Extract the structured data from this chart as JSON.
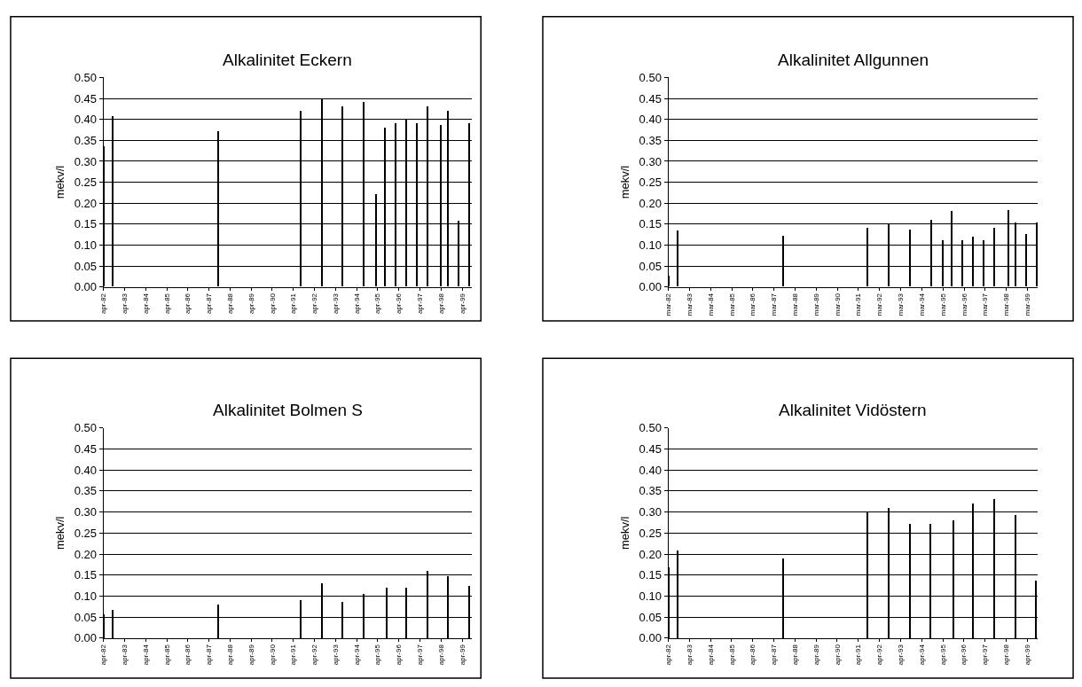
{
  "chart_data": [
    {
      "type": "bar",
      "title": "Alkalinitet Eckern",
      "ylabel": "mekv/l",
      "color": "#000000",
      "grid": "y",
      "x": [
        "1982-04",
        "1982-09",
        "1987-09",
        "1991-08",
        "1992-08",
        "1993-08",
        "1994-08",
        "1995-03",
        "1995-08",
        "1996-02",
        "1996-08",
        "1997-02",
        "1997-08",
        "1998-04",
        "1998-08",
        "1999-02",
        "1999-08"
      ],
      "values": [
        0.336,
        0.407,
        0.37,
        0.42,
        0.45,
        0.43,
        0.44,
        0.22,
        0.38,
        0.39,
        0.4,
        0.39,
        0.43,
        0.385,
        0.42,
        0.157,
        0.39
      ],
      "xlim": [
        "1982-04",
        "1999-09-20"
      ],
      "ylim": [
        0,
        0.5
      ],
      "xticks": [
        {
          "value": "1982-04",
          "label": "apr-82"
        },
        {
          "value": "1983-04",
          "label": "apr-83"
        },
        {
          "value": "1984-04",
          "label": "apr-84"
        },
        {
          "value": "1985-04",
          "label": "apr-85"
        },
        {
          "value": "1986-04",
          "label": "apr-86"
        },
        {
          "value": "1987-04",
          "label": "apr-87"
        },
        {
          "value": "1988-04",
          "label": "apr-88"
        },
        {
          "value": "1989-04",
          "label": "apr-89"
        },
        {
          "value": "1990-04",
          "label": "apr-90"
        },
        {
          "value": "1991-04",
          "label": "apr-91"
        },
        {
          "value": "1992-04",
          "label": "apr-92"
        },
        {
          "value": "1993-04",
          "label": "apr-93"
        },
        {
          "value": "1994-04",
          "label": "apr-94"
        },
        {
          "value": "1995-04",
          "label": "apr-95"
        },
        {
          "value": "1996-04",
          "label": "apr-96"
        },
        {
          "value": "1997-04",
          "label": "apr-97"
        },
        {
          "value": "1998-04",
          "label": "apr-98"
        },
        {
          "value": "1999-04",
          "label": "apr-99"
        }
      ],
      "yticks": [
        {
          "value": 0,
          "label": "0.00"
        },
        {
          "value": 0.05,
          "label": "0.05"
        },
        {
          "value": 0.1,
          "label": "0.10"
        },
        {
          "value": 0.15,
          "label": "0.15"
        },
        {
          "value": 0.2,
          "label": "0.20"
        },
        {
          "value": 0.25,
          "label": "0.25"
        },
        {
          "value": 0.3,
          "label": "0.30"
        },
        {
          "value": 0.35,
          "label": "0.35"
        },
        {
          "value": 0.4,
          "label": "0.40"
        },
        {
          "value": 0.45,
          "label": "0.45"
        },
        {
          "value": 0.5,
          "label": "0.50"
        }
      ]
    },
    {
      "type": "bar",
      "title": "Alkalinitet Allgunnen",
      "ylabel": "mekv/l",
      "color": "#000000",
      "grid": "y",
      "x": [
        "1982-03",
        "1982-08",
        "1987-08",
        "1991-08",
        "1992-08",
        "1993-08",
        "1994-08",
        "1995-03",
        "1995-08",
        "1996-02",
        "1996-08",
        "1997-02",
        "1997-08",
        "1998-04",
        "1998-08",
        "1999-02",
        "1999-08"
      ],
      "values": [
        0.026,
        0.133,
        0.121,
        0.14,
        0.15,
        0.136,
        0.16,
        0.11,
        0.18,
        0.11,
        0.12,
        0.11,
        0.14,
        0.182,
        0.152,
        0.126,
        0.152
      ],
      "xlim": [
        "1982-03",
        "1999-08-28"
      ],
      "ylim": [
        0,
        0.5
      ],
      "xticks": [
        {
          "value": "1982-03",
          "label": "mar-82"
        },
        {
          "value": "1983-03",
          "label": "mar-83"
        },
        {
          "value": "1984-03",
          "label": "mar-84"
        },
        {
          "value": "1985-03",
          "label": "mar-85"
        },
        {
          "value": "1986-03",
          "label": "mar-86"
        },
        {
          "value": "1987-03",
          "label": "mar-87"
        },
        {
          "value": "1988-03",
          "label": "mar-88"
        },
        {
          "value": "1989-03",
          "label": "mar-89"
        },
        {
          "value": "1990-03",
          "label": "mar-90"
        },
        {
          "value": "1991-03",
          "label": "mar-91"
        },
        {
          "value": "1992-03",
          "label": "mar-92"
        },
        {
          "value": "1993-03",
          "label": "mar-93"
        },
        {
          "value": "1994-03",
          "label": "mar-94"
        },
        {
          "value": "1995-03",
          "label": "mar-95"
        },
        {
          "value": "1996-03",
          "label": "mar-96"
        },
        {
          "value": "1997-03",
          "label": "mar-97"
        },
        {
          "value": "1998-03",
          "label": "mar-98"
        },
        {
          "value": "1999-03",
          "label": "mar-99"
        }
      ],
      "yticks": [
        {
          "value": 0,
          "label": "0.00"
        },
        {
          "value": 0.05,
          "label": "0.05"
        },
        {
          "value": 0.1,
          "label": "0.10"
        },
        {
          "value": 0.15,
          "label": "0.15"
        },
        {
          "value": 0.2,
          "label": "0.20"
        },
        {
          "value": 0.25,
          "label": "0.25"
        },
        {
          "value": 0.3,
          "label": "0.30"
        },
        {
          "value": 0.35,
          "label": "0.35"
        },
        {
          "value": 0.4,
          "label": "0.40"
        },
        {
          "value": 0.45,
          "label": "0.45"
        },
        {
          "value": 0.5,
          "label": "0.50"
        }
      ]
    },
    {
      "type": "bar",
      "title": "Alkalinitet Bolmen S",
      "ylabel": "mekv/l",
      "color": "#000000",
      "grid": "y",
      "x": [
        "1982-04",
        "1982-09",
        "1987-09",
        "1991-08",
        "1992-08",
        "1993-08",
        "1994-08",
        "1995-09",
        "1996-08",
        "1997-08",
        "1998-08",
        "1999-08"
      ],
      "values": [
        0.057,
        0.069,
        0.081,
        0.091,
        0.131,
        0.087,
        0.106,
        0.121,
        0.121,
        0.161,
        0.149,
        0.126
      ],
      "xlim": [
        "1982-04",
        "1999-09-20"
      ],
      "ylim": [
        0,
        0.5
      ],
      "xticks": [
        {
          "value": "1982-04",
          "label": "apr-82"
        },
        {
          "value": "1983-04",
          "label": "apr-83"
        },
        {
          "value": "1984-04",
          "label": "apr-84"
        },
        {
          "value": "1985-04",
          "label": "apr-85"
        },
        {
          "value": "1986-04",
          "label": "apr-86"
        },
        {
          "value": "1987-04",
          "label": "apr-87"
        },
        {
          "value": "1988-04",
          "label": "apr-88"
        },
        {
          "value": "1989-04",
          "label": "apr-89"
        },
        {
          "value": "1990-04",
          "label": "apr-90"
        },
        {
          "value": "1991-04",
          "label": "apr-91"
        },
        {
          "value": "1992-04",
          "label": "apr-92"
        },
        {
          "value": "1993-04",
          "label": "apr-93"
        },
        {
          "value": "1994-04",
          "label": "apr-94"
        },
        {
          "value": "1995-04",
          "label": "apr-95"
        },
        {
          "value": "1996-04",
          "label": "apr-96"
        },
        {
          "value": "1997-04",
          "label": "apr-97"
        },
        {
          "value": "1998-04",
          "label": "apr-98"
        },
        {
          "value": "1999-04",
          "label": "apr-99"
        }
      ],
      "yticks": [
        {
          "value": 0,
          "label": "0.00"
        },
        {
          "value": 0.05,
          "label": "0.05"
        },
        {
          "value": 0.1,
          "label": "0.10"
        },
        {
          "value": 0.15,
          "label": "0.15"
        },
        {
          "value": 0.2,
          "label": "0.20"
        },
        {
          "value": 0.25,
          "label": "0.25"
        },
        {
          "value": 0.3,
          "label": "0.30"
        },
        {
          "value": 0.35,
          "label": "0.35"
        },
        {
          "value": 0.4,
          "label": "0.40"
        },
        {
          "value": 0.45,
          "label": "0.45"
        },
        {
          "value": 0.5,
          "label": "0.50"
        }
      ]
    },
    {
      "type": "bar",
      "title": "Alkalinitet Vidöstern",
      "ylabel": "mekv/l",
      "color": "#000000",
      "grid": "y",
      "x": [
        "1982-04",
        "1982-09",
        "1987-09",
        "1991-09",
        "1992-09",
        "1993-09",
        "1994-09",
        "1995-10",
        "1996-09",
        "1997-09",
        "1998-09",
        "1999-09"
      ],
      "values": [
        0.17,
        0.21,
        0.19,
        0.3,
        0.31,
        0.272,
        0.272,
        0.28,
        0.32,
        0.331,
        0.294,
        0.138
      ],
      "xlim": [
        "1982-04",
        "1999-10"
      ],
      "ylim": [
        0,
        0.5
      ],
      "xticks": [
        {
          "value": "1982-04",
          "label": "apr-82"
        },
        {
          "value": "1983-04",
          "label": "apr-83"
        },
        {
          "value": "1984-04",
          "label": "apr-84"
        },
        {
          "value": "1985-04",
          "label": "apr-85"
        },
        {
          "value": "1986-04",
          "label": "apr-86"
        },
        {
          "value": "1987-04",
          "label": "apr-87"
        },
        {
          "value": "1988-04",
          "label": "apr-88"
        },
        {
          "value": "1989-04",
          "label": "apr-89"
        },
        {
          "value": "1990-04",
          "label": "apr-90"
        },
        {
          "value": "1991-04",
          "label": "apr-91"
        },
        {
          "value": "1992-04",
          "label": "apr-92"
        },
        {
          "value": "1993-04",
          "label": "apr-93"
        },
        {
          "value": "1994-04",
          "label": "apr-94"
        },
        {
          "value": "1995-04",
          "label": "apr-95"
        },
        {
          "value": "1996-04",
          "label": "apr-96"
        },
        {
          "value": "1997-04",
          "label": "apr-97"
        },
        {
          "value": "1998-04",
          "label": "apr-98"
        },
        {
          "value": "1999-04",
          "label": "apr-99"
        }
      ],
      "yticks": [
        {
          "value": 0,
          "label": "0.00"
        },
        {
          "value": 0.05,
          "label": "0.05"
        },
        {
          "value": 0.1,
          "label": "0.10"
        },
        {
          "value": 0.15,
          "label": "0.15"
        },
        {
          "value": 0.2,
          "label": "0.20"
        },
        {
          "value": 0.25,
          "label": "0.25"
        },
        {
          "value": 0.3,
          "label": "0.30"
        },
        {
          "value": 0.35,
          "label": "0.35"
        },
        {
          "value": 0.4,
          "label": "0.40"
        },
        {
          "value": 0.45,
          "label": "0.45"
        },
        {
          "value": 0.5,
          "label": "0.50"
        }
      ]
    }
  ]
}
